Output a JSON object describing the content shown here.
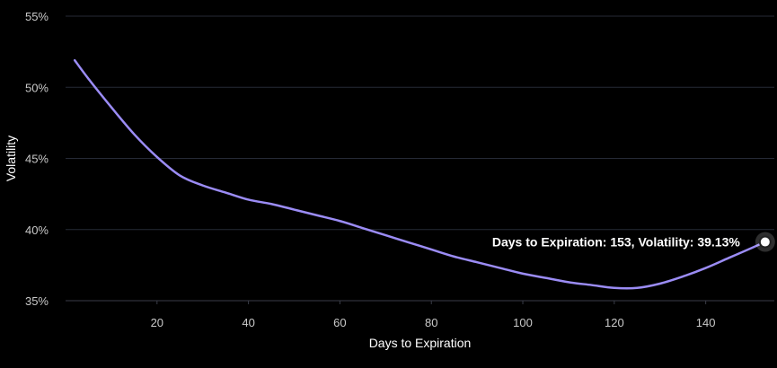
{
  "chart_data": {
    "type": "line",
    "xlabel": "Days to Expiration",
    "ylabel": "Volatility",
    "xlim": [
      0,
      155
    ],
    "ylim": [
      35,
      55
    ],
    "x_ticks": [
      20,
      40,
      60,
      80,
      100,
      120,
      140
    ],
    "y_ticks": [
      35,
      40,
      45,
      50,
      55
    ],
    "y_tick_suffix": "%",
    "grid": "horizontal",
    "legend": "none",
    "series": [
      {
        "color": "#9b8cf5",
        "points": [
          [
            2,
            51.9
          ],
          [
            5,
            50.6
          ],
          [
            10,
            48.6
          ],
          [
            15,
            46.7
          ],
          [
            20,
            45.1
          ],
          [
            25,
            43.8
          ],
          [
            30,
            43.1
          ],
          [
            35,
            42.6
          ],
          [
            40,
            42.1
          ],
          [
            45,
            41.8
          ],
          [
            50,
            41.4
          ],
          [
            55,
            41.0
          ],
          [
            60,
            40.6
          ],
          [
            65,
            40.1
          ],
          [
            70,
            39.6
          ],
          [
            75,
            39.1
          ],
          [
            80,
            38.6
          ],
          [
            85,
            38.1
          ],
          [
            90,
            37.7
          ],
          [
            95,
            37.3
          ],
          [
            100,
            36.9
          ],
          [
            105,
            36.6
          ],
          [
            110,
            36.3
          ],
          [
            115,
            36.1
          ],
          [
            120,
            35.9
          ],
          [
            125,
            35.9
          ],
          [
            130,
            36.2
          ],
          [
            135,
            36.7
          ],
          [
            140,
            37.3
          ],
          [
            145,
            38.0
          ],
          [
            150,
            38.7
          ],
          [
            153,
            39.13
          ]
        ]
      }
    ],
    "tooltip": {
      "text": "Days to Expiration: 153, Volatility: 39.13%",
      "x": 153,
      "y": 39.13
    }
  }
}
